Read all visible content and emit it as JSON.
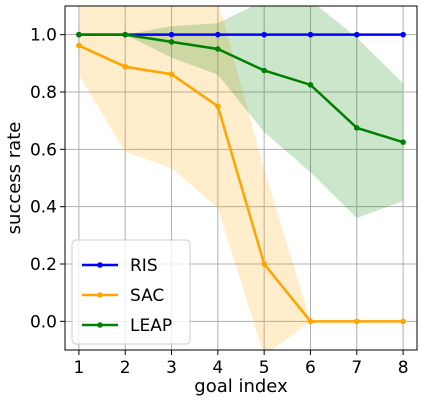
{
  "chart_data": {
    "type": "line",
    "xlabel": "goal index",
    "ylabel": "success rate",
    "x": [
      1,
      2,
      3,
      4,
      5,
      6,
      7,
      8
    ],
    "xlim": [
      0.7,
      8.3
    ],
    "ylim": [
      -0.1,
      1.1
    ],
    "xticks": [
      "1",
      "2",
      "3",
      "4",
      "5",
      "6",
      "7",
      "8"
    ],
    "yticks": [
      {
        "value": 0.0,
        "label": "0.0"
      },
      {
        "value": 0.2,
        "label": "0.2"
      },
      {
        "value": 0.4,
        "label": "0.4"
      },
      {
        "value": 0.6,
        "label": "0.6"
      },
      {
        "value": 0.8,
        "label": "0.8"
      },
      {
        "value": 1.0,
        "label": "1.0"
      }
    ],
    "grid": true,
    "legend_position": "bottom-left",
    "series": [
      {
        "name": "RIS",
        "color": "#0000ff",
        "band_color": "#0000ff",
        "values": [
          1.0,
          1.0,
          1.0,
          1.0,
          1.0,
          1.0,
          1.0,
          1.0
        ],
        "lower": [
          1.0,
          1.0,
          1.0,
          1.0,
          1.0,
          1.0,
          1.0,
          1.0
        ],
        "upper": [
          1.0,
          1.0,
          1.0,
          1.0,
          1.0,
          1.0,
          1.0,
          1.0
        ]
      },
      {
        "name": "SAC",
        "color": "#ffa500",
        "band_color": "#ffa500",
        "values": [
          0.962,
          0.888,
          0.862,
          0.75,
          0.2,
          0.0,
          0.0,
          0.0
        ],
        "lower": [
          0.86,
          0.59,
          0.535,
          0.395,
          -0.12,
          0.0,
          0.0,
          0.0
        ],
        "upper": [
          1.12,
          1.12,
          1.12,
          1.12,
          0.53,
          0.0,
          0.0,
          0.0
        ]
      },
      {
        "name": "LEAP",
        "color": "#008000",
        "band_color": "#008000",
        "values": [
          1.0,
          1.0,
          0.975,
          0.95,
          0.875,
          0.825,
          0.675,
          0.625
        ],
        "lower": [
          1.0,
          1.0,
          0.92,
          0.86,
          0.66,
          0.52,
          0.36,
          0.42
        ],
        "upper": [
          1.0,
          1.0,
          1.03,
          1.04,
          1.12,
          1.12,
          0.99,
          0.83
        ]
      }
    ]
  }
}
